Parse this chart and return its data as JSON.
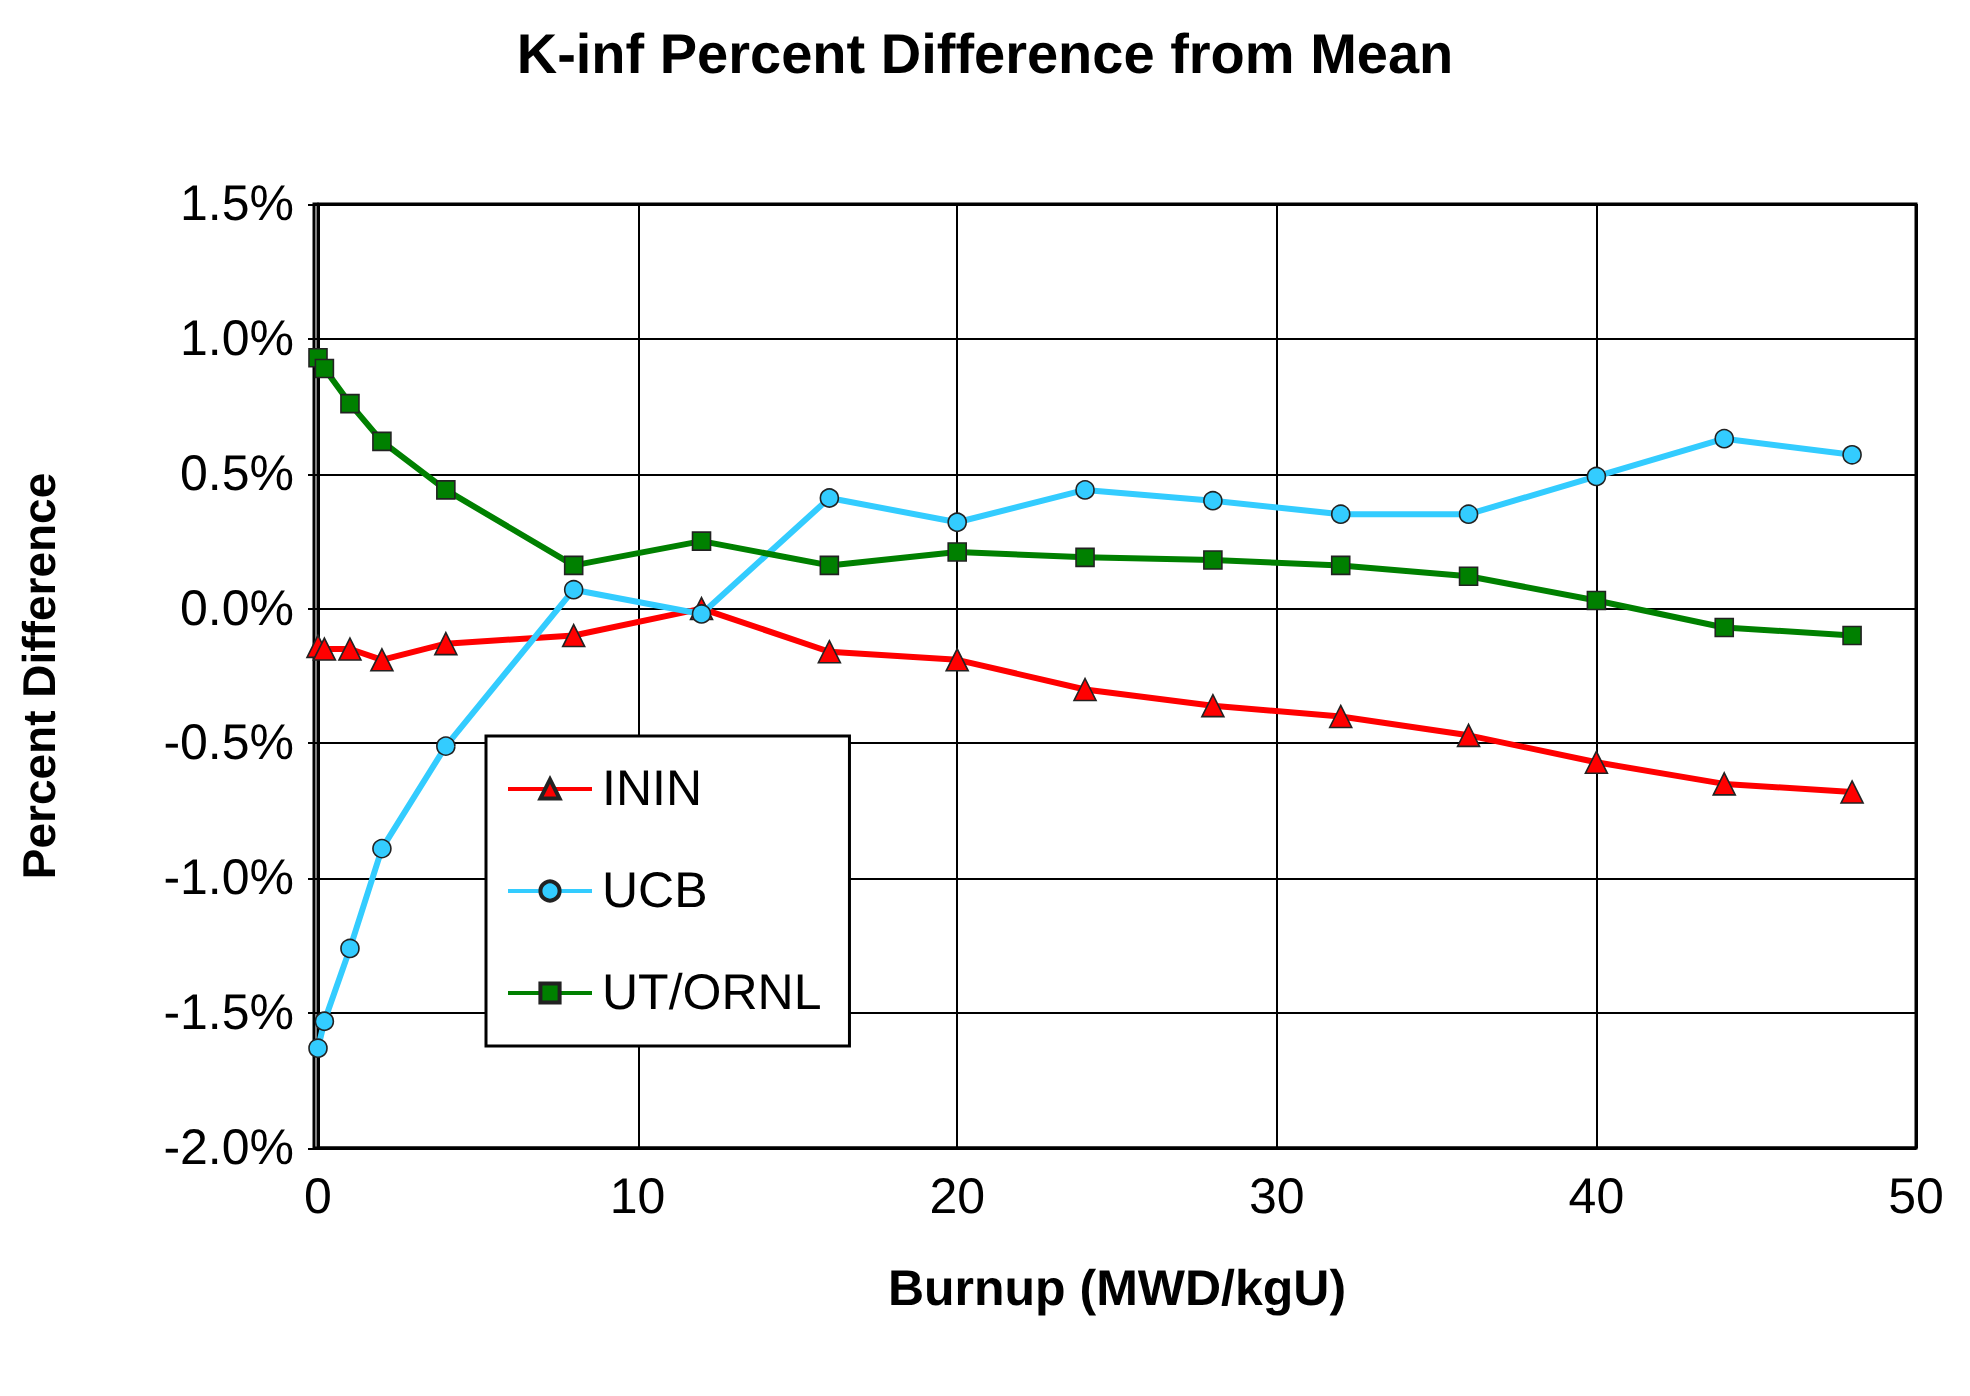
{
  "chart_data": {
    "type": "line",
    "title": "K-inf Percent Difference from Mean",
    "xlabel": "Burnup (MWD/kgU)",
    "ylabel": "Percent Difference",
    "x": [
      0,
      0.2,
      1,
      2,
      4,
      8,
      12,
      16,
      20,
      24,
      28,
      32,
      36,
      40,
      44,
      48
    ],
    "series": [
      {
        "name": "ININ",
        "color": "#ff0000",
        "marker": "triangle",
        "values": [
          -0.14,
          -0.15,
          -0.15,
          -0.19,
          -0.13,
          -0.1,
          0.0,
          -0.16,
          -0.19,
          -0.3,
          -0.36,
          -0.4,
          -0.47,
          -0.57,
          -0.65,
          -0.68
        ]
      },
      {
        "name": "UCB",
        "color": "#33ccff",
        "marker": "circle",
        "values": [
          -1.63,
          -1.53,
          -1.26,
          -0.89,
          -0.51,
          0.07,
          -0.02,
          0.41,
          0.32,
          0.44,
          0.4,
          0.35,
          0.35,
          0.49,
          0.63,
          0.57
        ]
      },
      {
        "name": "UT/ORNL",
        "color": "#008000",
        "marker": "square",
        "values": [
          0.93,
          0.89,
          0.76,
          0.62,
          0.44,
          0.16,
          0.25,
          0.16,
          0.21,
          0.19,
          0.18,
          0.16,
          0.12,
          0.03,
          -0.07,
          -0.1
        ]
      }
    ],
    "xlim": [
      0,
      50
    ],
    "xticks": [
      0,
      10,
      20,
      30,
      40,
      50
    ],
    "ylim": [
      -2.0,
      1.5
    ],
    "yticks": [
      {
        "value": -2.0,
        "label": "-2.0%"
      },
      {
        "value": -1.5,
        "label": "-1.5%"
      },
      {
        "value": -1.0,
        "label": "-1.0%"
      },
      {
        "value": -0.5,
        "label": "-0.5%"
      },
      {
        "value": 0.0,
        "label": "0.0%"
      },
      {
        "value": 0.5,
        "label": "0.5%"
      },
      {
        "value": 1.0,
        "label": "1.0%"
      },
      {
        "value": 1.5,
        "label": "1.5%"
      }
    ],
    "grid": true,
    "legend": "bottom left",
    "line_style": "solid"
  }
}
